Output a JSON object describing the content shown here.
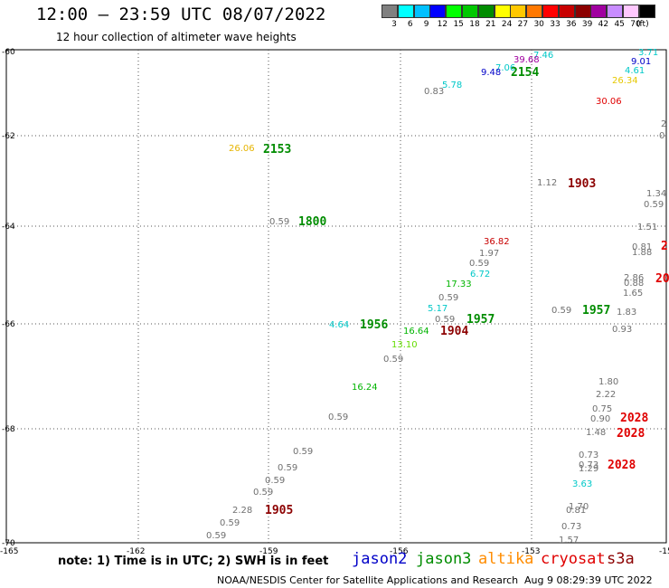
{
  "header": {
    "title": "12:00 – 23:59 UTC 08/07/2022",
    "subtitle": "12 hour collection of altimeter wave heights"
  },
  "legend": {
    "colors": [
      "#808080",
      "#00ffff",
      "#00c0ff",
      "#0000ff",
      "#00ff00",
      "#00c800",
      "#008c00",
      "#ffff00",
      "#ffc800",
      "#ff7800",
      "#ff0000",
      "#c80000",
      "#8c0000",
      "#a000a0",
      "#c88cff",
      "#ffc8ff",
      "#000000"
    ],
    "labels": [
      "3",
      "6",
      "9",
      "12",
      "15",
      "18",
      "21",
      "24",
      "27",
      "30",
      "33",
      "36",
      "39",
      "42",
      "45",
      "70",
      "(ft)"
    ]
  },
  "axes": {
    "lat_labels": [
      "-60",
      "-62",
      "-64",
      "-66",
      "-68",
      "-70"
    ],
    "lon_labels": [
      "-165",
      "-162",
      "-159",
      "-156",
      "-153",
      "-15"
    ],
    "grid": "dotted"
  },
  "observations": [
    {
      "text": "7.46",
      "color": "#00c8c8"
    },
    {
      "text": "3.71",
      "color": "#00c8c8"
    },
    {
      "text": "39.68",
      "color": "#a000a0"
    },
    {
      "text": "7.06",
      "color": "#00c8c8"
    },
    {
      "text": "9.01",
      "color": "#0000c8"
    },
    {
      "text": "9.48",
      "color": "#0000c8"
    },
    {
      "text": "4.61",
      "color": "#00c8c8"
    },
    {
      "text": "26.34",
      "color": "#e6c800"
    },
    {
      "text": "5.78",
      "color": "#00c8c8"
    },
    {
      "text": "0.83",
      "color": "#707070"
    },
    {
      "text": "30.06",
      "color": "#e00000"
    },
    {
      "text": "2",
      "color": "#707070"
    },
    {
      "text": "0",
      "color": "#707070"
    },
    {
      "text": "26.06",
      "color": "#e6b400"
    },
    {
      "text": "0.59",
      "color": "#707070"
    },
    {
      "text": "1.12",
      "color": "#707070"
    },
    {
      "text": "1.34",
      "color": "#707070"
    },
    {
      "text": "0.59",
      "color": "#707070"
    },
    {
      "text": "6.72",
      "color": "#00c8c8"
    },
    {
      "text": "1.51",
      "color": "#707070"
    },
    {
      "text": "36.82",
      "color": "#c80000"
    },
    {
      "text": "0.81",
      "color": "#707070"
    },
    {
      "text": "1.88",
      "color": "#707070"
    },
    {
      "text": "1.97",
      "color": "#707070"
    },
    {
      "text": "0.59",
      "color": "#707070"
    },
    {
      "text": "2.86",
      "color": "#707070"
    },
    {
      "text": "0.88",
      "color": "#707070"
    },
    {
      "text": "17.33",
      "color": "#00b400"
    },
    {
      "text": "1.65",
      "color": "#707070"
    },
    {
      "text": "0.59",
      "color": "#707070"
    },
    {
      "text": "5.17",
      "color": "#00c8c8"
    },
    {
      "text": "0.59",
      "color": "#707070"
    },
    {
      "text": "1.83",
      "color": "#707070"
    },
    {
      "text": "0.59",
      "color": "#707070"
    },
    {
      "text": "4.64",
      "color": "#00c8c8"
    },
    {
      "text": "16.64",
      "color": "#00b400"
    },
    {
      "text": "0.93",
      "color": "#707070"
    },
    {
      "text": "13.10",
      "color": "#64dc00"
    },
    {
      "text": "0.59",
      "color": "#707070"
    },
    {
      "text": "16.24",
      "color": "#00b400"
    },
    {
      "text": "1.80",
      "color": "#707070"
    },
    {
      "text": "2.22",
      "color": "#707070"
    },
    {
      "text": "0.75",
      "color": "#707070"
    },
    {
      "text": "0.59",
      "color": "#707070"
    },
    {
      "text": "0.90",
      "color": "#707070"
    },
    {
      "text": "1.48",
      "color": "#707070"
    },
    {
      "text": "0.59",
      "color": "#707070"
    },
    {
      "text": "0.59",
      "color": "#707070"
    },
    {
      "text": "0.73",
      "color": "#707070"
    },
    {
      "text": "0.59",
      "color": "#707070"
    },
    {
      "text": "0.73",
      "color": "#707070"
    },
    {
      "text": "1.29",
      "color": "#707070"
    },
    {
      "text": "0.59",
      "color": "#707070"
    },
    {
      "text": "3.63",
      "color": "#00c8c8"
    },
    {
      "text": "2.28",
      "color": "#707070"
    },
    {
      "text": "1.70",
      "color": "#707070"
    },
    {
      "text": "0.81",
      "color": "#707070"
    },
    {
      "text": "0.59",
      "color": "#707070"
    },
    {
      "text": "0.73",
      "color": "#707070"
    },
    {
      "text": "0.59",
      "color": "#707070"
    },
    {
      "text": "1.57",
      "color": "#707070"
    }
  ],
  "time_tags": [
    {
      "text": "2154",
      "color": "#008c00"
    },
    {
      "text": "2153",
      "color": "#008c00"
    },
    {
      "text": "1903",
      "color": "#8c0000"
    },
    {
      "text": "1800",
      "color": "#008c00"
    },
    {
      "text": "2",
      "color": "#e00000"
    },
    {
      "text": "20",
      "color": "#e00000"
    },
    {
      "text": "1956",
      "color": "#008c00"
    },
    {
      "text": "1957",
      "color": "#008c00"
    },
    {
      "text": "1904",
      "color": "#8c0000"
    },
    {
      "text": "1957",
      "color": "#008c00"
    },
    {
      "text": "2028",
      "color": "#e00000"
    },
    {
      "text": "2028",
      "color": "#e00000"
    },
    {
      "text": "2028",
      "color": "#e00000"
    },
    {
      "text": "1905",
      "color": "#8c0000"
    }
  ],
  "footer": {
    "note": "note: 1) Time is in UTC; 2) SWH is in feet",
    "missions": [
      {
        "name": "jason2",
        "color": "#0000c8"
      },
      {
        "name": "jason3",
        "color": "#008c00"
      },
      {
        "name": "altika",
        "color": "#ff8c00"
      },
      {
        "name": "cryosat",
        "color": "#e00000"
      },
      {
        "name": "s3a",
        "color": "#8c0000"
      }
    ],
    "credit": "NOAA/NESDIS Center for Satellite Applications and Research",
    "timestamp": "Aug  9 08:29:39 UTC 2022"
  }
}
